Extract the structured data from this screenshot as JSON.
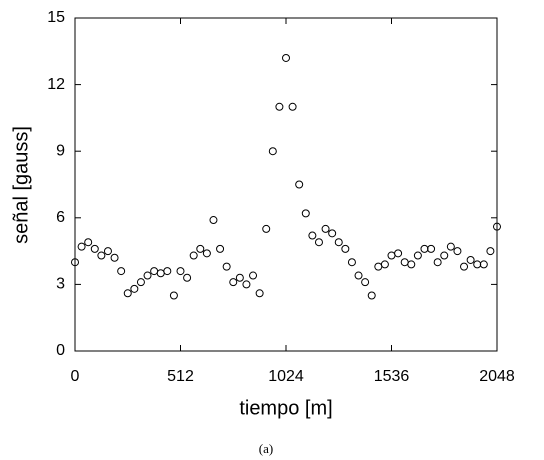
{
  "chart_data": {
    "type": "scatter",
    "x_label": "tiempo [m]",
    "y_label": "señal [gauss]",
    "caption": "(a)",
    "x": [
      0,
      32,
      64,
      96,
      128,
      160,
      192,
      224,
      256,
      288,
      320,
      352,
      384,
      416,
      448,
      480,
      512,
      544,
      576,
      608,
      640,
      672,
      704,
      736,
      768,
      800,
      832,
      864,
      896,
      928,
      960,
      992,
      1024,
      1056,
      1088,
      1120,
      1152,
      1184,
      1216,
      1248,
      1280,
      1312,
      1344,
      1376,
      1408,
      1440,
      1472,
      1504,
      1536,
      1568,
      1600,
      1632,
      1664,
      1696,
      1728,
      1760,
      1792,
      1824,
      1856,
      1888,
      1920,
      1952,
      1984,
      2016,
      2048
    ],
    "values": [
      4.0,
      4.7,
      4.9,
      4.6,
      4.3,
      4.5,
      4.2,
      3.6,
      2.6,
      2.8,
      3.1,
      3.4,
      3.6,
      3.5,
      3.6,
      2.5,
      3.6,
      3.3,
      4.3,
      4.6,
      4.4,
      5.9,
      4.6,
      3.8,
      3.1,
      3.3,
      3.0,
      3.4,
      2.6,
      5.5,
      9.0,
      11.0,
      13.2,
      11.0,
      7.5,
      6.2,
      5.2,
      4.9,
      5.5,
      5.3,
      4.9,
      4.6,
      4.0,
      3.4,
      3.1,
      2.5,
      3.8,
      3.9,
      4.3,
      4.4,
      4.0,
      3.9,
      4.3,
      4.6,
      4.6,
      4.0,
      4.3,
      4.7,
      4.5,
      3.8,
      4.1,
      3.9,
      3.9,
      4.5,
      5.6
    ],
    "color": "#000000",
    "xlim": [
      0,
      2048
    ],
    "xticks": [
      0,
      512,
      1024,
      1536,
      2048
    ],
    "ylim": [
      0,
      15
    ],
    "yticks": [
      0,
      3,
      6,
      9,
      12,
      15
    ]
  }
}
